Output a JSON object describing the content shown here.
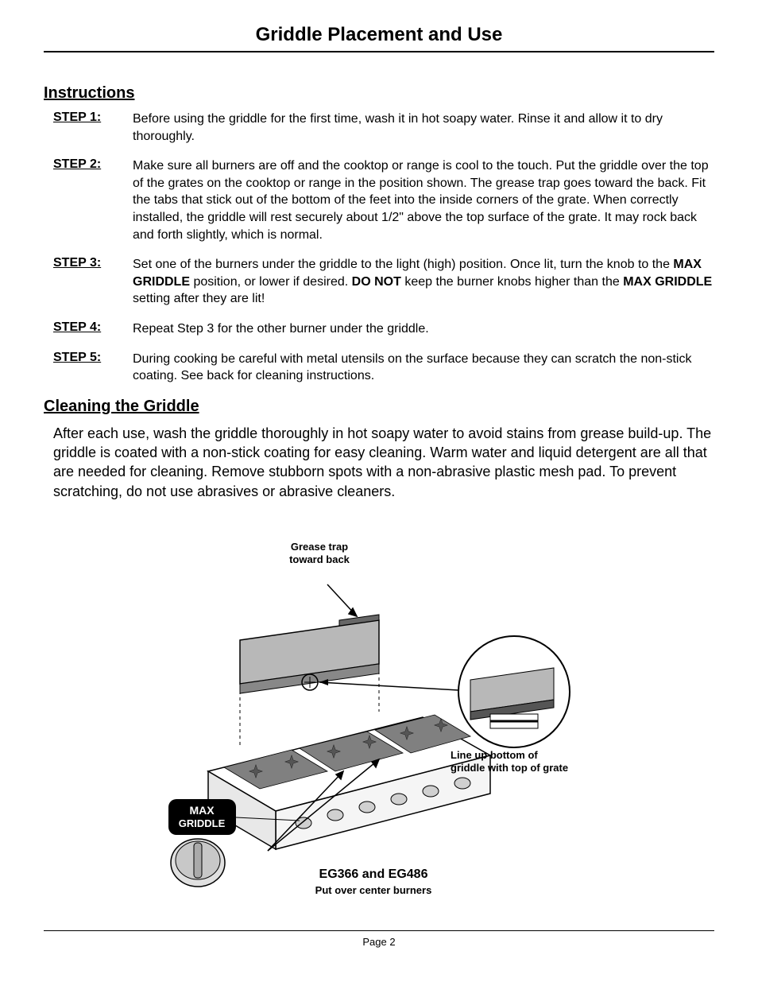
{
  "title": "Griddle Placement and Use",
  "instructions": {
    "heading": "Instructions",
    "steps": [
      {
        "label": "STEP 1:",
        "html": "Before using the griddle for the first time, wash it in hot soapy water. Rinse it and allow it to dry thoroughly."
      },
      {
        "label": "STEP 2:",
        "html": "Make sure all burners are off and the cooktop or range is cool to the touch. Put the griddle over the top of the grates on the cooktop or range in the position shown. The grease trap goes toward the back. Fit the tabs that stick out of the bottom of the feet into the inside corners of the grate. When correctly installed, the griddle will rest securely about 1/2\" above the top surface of the grate. It may rock back and forth slightly, which is normal."
      },
      {
        "label": "STEP 3:",
        "html": "Set one of the burners under the griddle to the light (high) position. Once lit, turn the knob to the <b>MAX GRIDDLE</b> position, or lower if desired. <b>DO NOT</b> keep the burner knobs higher than the <b>MAX GRIDDLE</b> setting after they are lit!"
      },
      {
        "label": "STEP 4:",
        "html": "Repeat Step 3 for the other burner under the griddle."
      },
      {
        "label": "STEP 5:",
        "html": "During cooking be careful with metal utensils on the surface because they can scratch the non-stick coating. See back for cleaning instructions."
      }
    ]
  },
  "cleaning": {
    "heading": "Cleaning the Griddle",
    "text": "After each use, wash the griddle thoroughly in hot soapy water to avoid stains from grease build-up. The griddle is coated with a non-stick coating for easy cleaning. Warm water and liquid detergent are all that are needed for cleaning. Remove stubborn spots with a non-abrasive plastic mesh pad. To prevent scratching, do not use abrasives or abrasive cleaners."
  },
  "diagram": {
    "labels": {
      "grease": "Grease trap\ntoward back",
      "lineup": "Line up bottom of\ngriddle with top of grate",
      "model": "EG366 and EG486",
      "put": "Put over center burners",
      "max1": "MAX",
      "max2": "GRIDDLE"
    },
    "colors": {
      "stroke": "#000000",
      "griddle_fill": "#b8b8b8",
      "cooktop_fill": "#ffffff",
      "grate_fill": "#808080",
      "knob_fill": "#d0d0d0",
      "badge_fill": "#000000",
      "badge_text": "#ffffff",
      "detail_circle_fill": "#ffffff"
    }
  },
  "footer": {
    "page": "Page 2"
  }
}
